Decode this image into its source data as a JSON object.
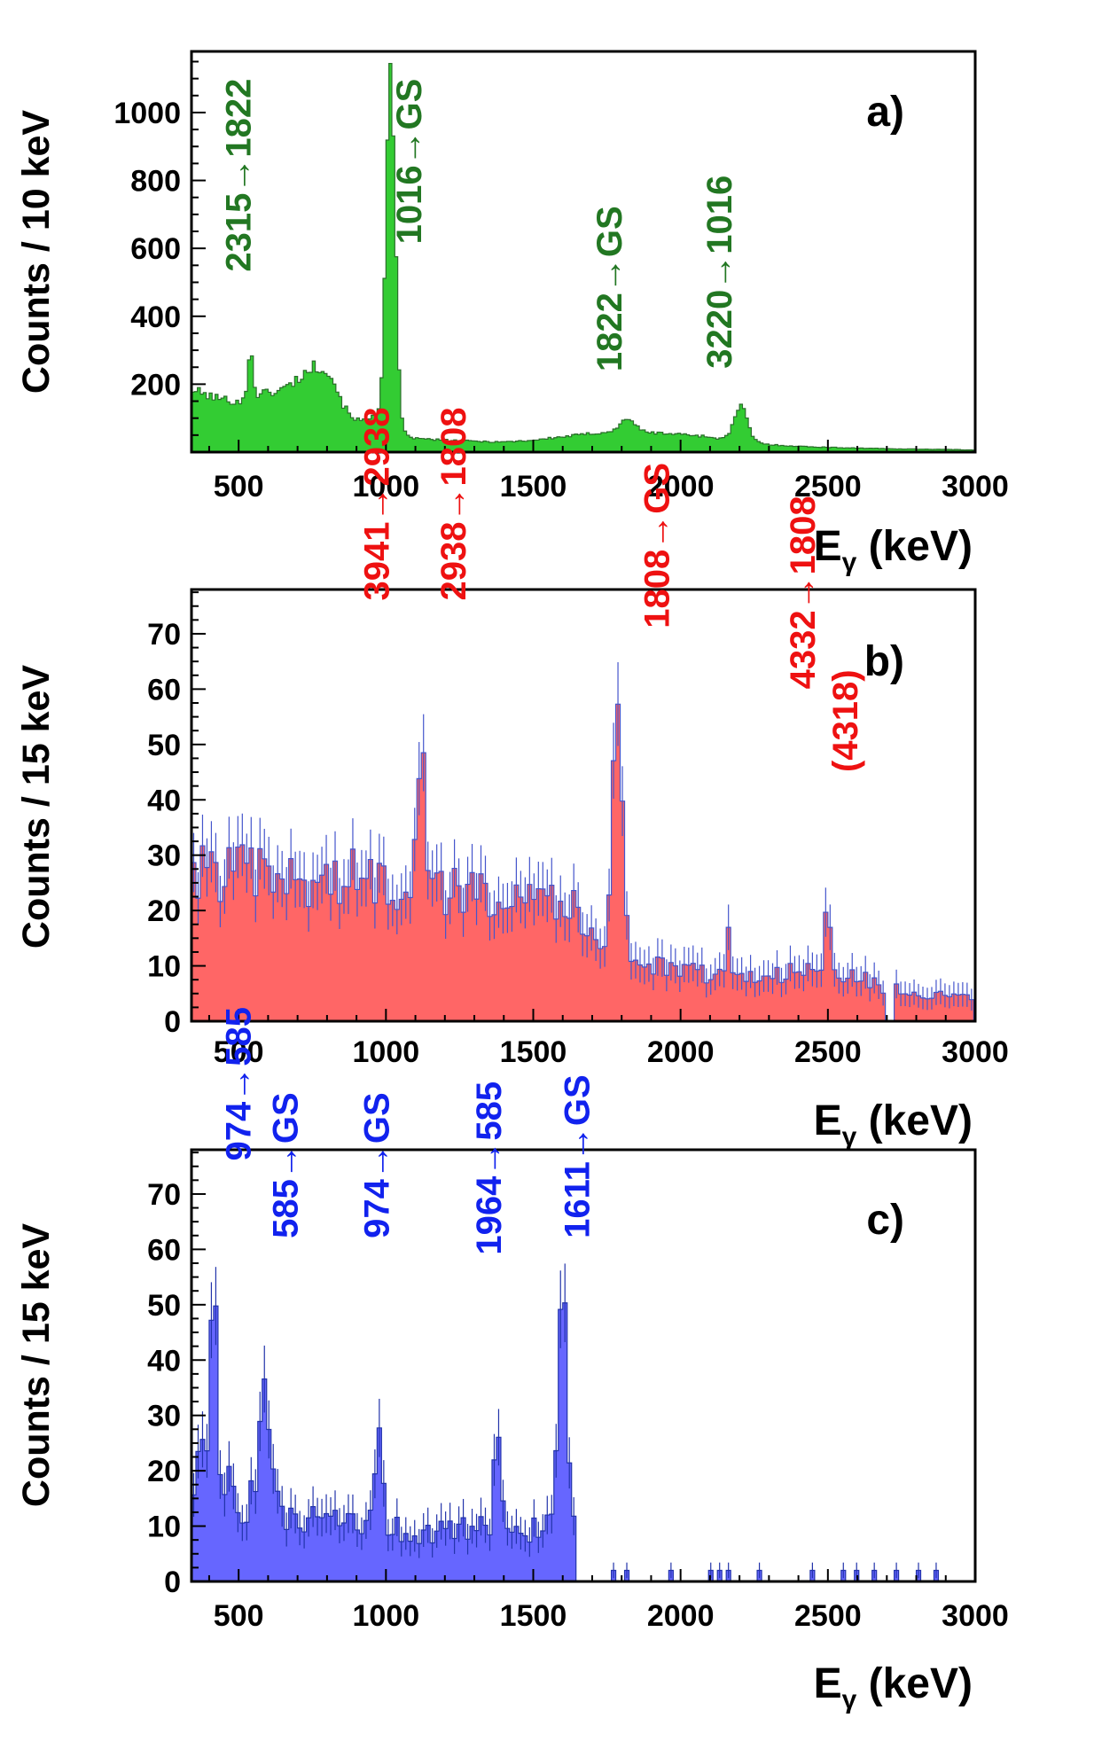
{
  "figure": {
    "x_axis_label_main": "E",
    "x_axis_label_sub": "γ",
    "x_axis_label_unit": " (keV)"
  },
  "chart_data": [
    {
      "type": "bar",
      "panel": "a)",
      "title": "",
      "xlabel": "Eγ (keV)",
      "ylabel": "Counts / 10 keV",
      "xlim": [
        340,
        3000
      ],
      "ylim": [
        0,
        1180
      ],
      "x_ticks": [
        500,
        1000,
        1500,
        2000,
        2500,
        3000
      ],
      "y_ticks": [
        200,
        400,
        600,
        800,
        1000
      ],
      "bin_width": 10,
      "error_bars": false,
      "fill_color": "#33cc33",
      "edge_color": "#2a6e2a",
      "label_color": "#227722",
      "baseline": [
        [
          340,
          185
        ],
        [
          400,
          165
        ],
        [
          450,
          155
        ],
        [
          500,
          150
        ],
        [
          530,
          150
        ],
        [
          560,
          170
        ],
        [
          600,
          175
        ],
        [
          650,
          185
        ],
        [
          700,
          215
        ],
        [
          750,
          250
        ],
        [
          790,
          255
        ],
        [
          820,
          215
        ],
        [
          860,
          130
        ],
        [
          900,
          95
        ],
        [
          940,
          90
        ],
        [
          960,
          120
        ],
        [
          1060,
          55
        ],
        [
          1100,
          40
        ],
        [
          1200,
          35
        ],
        [
          1300,
          32
        ],
        [
          1400,
          30
        ],
        [
          1500,
          35
        ],
        [
          1600,
          45
        ],
        [
          1700,
          55
        ],
        [
          1780,
          62
        ],
        [
          1850,
          60
        ],
        [
          1950,
          55
        ],
        [
          2050,
          50
        ],
        [
          2150,
          38
        ],
        [
          2250,
          30
        ],
        [
          2300,
          22
        ],
        [
          2400,
          17
        ],
        [
          2500,
          14
        ],
        [
          2600,
          12
        ],
        [
          2700,
          10
        ],
        [
          2800,
          9
        ],
        [
          2900,
          8
        ],
        [
          3000,
          6
        ]
      ],
      "peaks": [
        {
          "center": 540,
          "height": 160,
          "sigma": 8
        },
        {
          "center": 1016,
          "height": 1050,
          "sigma": 15
        },
        {
          "center": 1822,
          "height": 40,
          "sigma": 22
        },
        {
          "center": 2204,
          "height": 100,
          "sigma": 22
        }
      ],
      "noise": 0.08,
      "annotations": [
        {
          "text": "2315→1822",
          "x": 540,
          "y": 1100,
          "anchor": "end"
        },
        {
          "text": "1016→GS",
          "x": 1120,
          "y": 1100,
          "anchor": "end"
        },
        {
          "text": "1822→GS",
          "x": 1800,
          "y": 725,
          "anchor": "end"
        },
        {
          "text": "3220→1016",
          "x": 2172,
          "y": 815,
          "anchor": "end"
        }
      ]
    },
    {
      "type": "bar",
      "panel": "b)",
      "title": "",
      "xlabel": "Eγ (keV)",
      "ylabel": "Counts / 15 keV",
      "xlim": [
        340,
        3000
      ],
      "ylim": [
        0,
        78
      ],
      "x_ticks": [
        500,
        1000,
        1500,
        2000,
        2500,
        3000
      ],
      "y_ticks": [
        0,
        10,
        20,
        30,
        40,
        50,
        60,
        70
      ],
      "bin_width": 15,
      "error_bars": true,
      "fill_color": "#ff6666",
      "edge_color": "#4455cc",
      "label_color": "#ee1111",
      "gap": [
        2700,
        2730
      ],
      "baseline": [
        [
          340,
          27
        ],
        [
          500,
          27
        ],
        [
          700,
          25
        ],
        [
          900,
          26
        ],
        [
          1100,
          24
        ],
        [
          1300,
          23
        ],
        [
          1500,
          25
        ],
        [
          1600,
          22
        ],
        [
          1700,
          16
        ],
        [
          1800,
          12
        ],
        [
          1900,
          10
        ],
        [
          2000,
          9
        ],
        [
          2200,
          8
        ],
        [
          2400,
          9
        ],
        [
          2600,
          8
        ],
        [
          2700,
          6
        ],
        [
          2800,
          5
        ],
        [
          3000,
          4
        ]
      ],
      "peaks": [
        {
          "center": 1120,
          "height": 34,
          "sigma": 14
        },
        {
          "center": 1785,
          "height": 50,
          "sigma": 16
        },
        {
          "center": 2500,
          "height": 12,
          "sigma": 10
        },
        {
          "center": 2160,
          "height": 9,
          "sigma": 7
        }
      ],
      "noise": 0.2,
      "annotations": [
        {
          "text": "3941→2938",
          "x": 1010,
          "y": 76,
          "anchor": "start"
        },
        {
          "text": "2938→1808",
          "x": 1270,
          "y": 76,
          "anchor": "start"
        },
        {
          "text": "1808→GS",
          "x": 1960,
          "y": 71,
          "anchor": "start"
        },
        {
          "text": "4332→1808",
          "x": 2455,
          "y": 60,
          "anchor": "start"
        },
        {
          "text": "(4318)",
          "x": 2600,
          "y": 45,
          "anchor": "start"
        }
      ]
    },
    {
      "type": "bar",
      "panel": "c)",
      "title": "",
      "xlabel": "Eγ (keV)",
      "ylabel": "Counts / 15 keV",
      "xlim": [
        340,
        3000
      ],
      "ylim": [
        0,
        78
      ],
      "x_ticks": [
        500,
        1000,
        1500,
        2000,
        2500,
        3000
      ],
      "y_ticks": [
        0,
        10,
        20,
        30,
        40,
        50,
        60,
        70
      ],
      "bin_width": 15,
      "error_bars": true,
      "fill_color": "#6666ff",
      "edge_color": "#2233aa",
      "label_color": "#1122ee",
      "sparse_after": 1650,
      "baseline": [
        [
          340,
          22
        ],
        [
          400,
          20
        ],
        [
          500,
          15
        ],
        [
          650,
          12
        ],
        [
          800,
          10
        ],
        [
          900,
          10
        ],
        [
          1100,
          9
        ],
        [
          1300,
          9
        ],
        [
          1500,
          10
        ],
        [
          1650,
          8
        ]
      ],
      "peaks": [
        {
          "center": 420,
          "height": 45,
          "sigma": 9
        },
        {
          "center": 585,
          "height": 25,
          "sigma": 16
        },
        {
          "center": 974,
          "height": 18,
          "sigma": 14
        },
        {
          "center": 1380,
          "height": 15,
          "sigma": 14
        },
        {
          "center": 1600,
          "height": 35,
          "sigma": 14
        }
      ],
      "noise": 0.3,
      "annotations": [
        {
          "text": "974→585",
          "x": 540,
          "y": 76,
          "anchor": "start"
        },
        {
          "text": "585→GS",
          "x": 700,
          "y": 62,
          "anchor": "start"
        },
        {
          "text": "974→GS",
          "x": 1010,
          "y": 62,
          "anchor": "start"
        },
        {
          "text": "1964→585",
          "x": 1390,
          "y": 59,
          "anchor": "start"
        },
        {
          "text": "1611→GS",
          "x": 1690,
          "y": 62,
          "anchor": "start"
        }
      ]
    }
  ]
}
